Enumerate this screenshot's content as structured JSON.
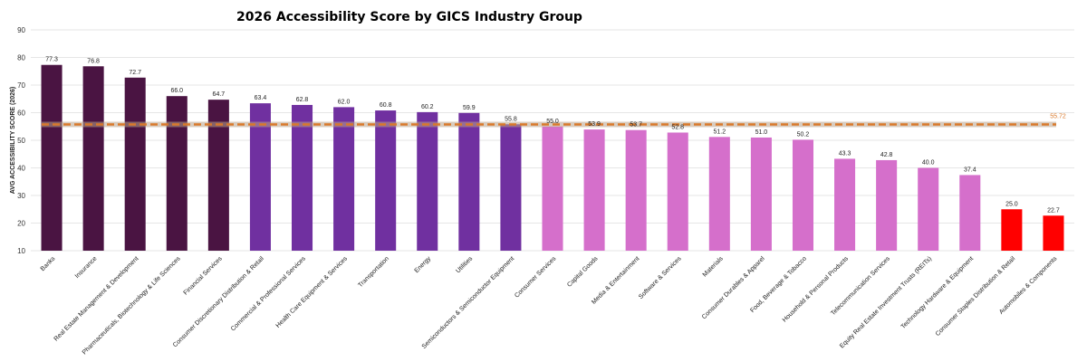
{
  "chart_data": {
    "type": "bar",
    "title": "2026 Accessibility Score by GICS Industry Group",
    "xlabel": "",
    "ylabel": "AVG ACCESSIBILITY SCORE (2026)",
    "ylim": [
      10,
      90
    ],
    "yticks": [
      10,
      20,
      30,
      40,
      50,
      60,
      70,
      80,
      90
    ],
    "grid": true,
    "categories": [
      "Banks",
      "Insurance",
      "Real Estate Management & Development",
      "Pharmaceuticals, Biotechnology & Life Sciences",
      "Financial Services",
      "Consumer Discretionary Distribution & Retail",
      "Commercial & Professional Services",
      "Health Care Equipment & Services",
      "Transportation",
      "Energy",
      "Utilities",
      "Semiconductors & Semiconductor Equipment",
      "Consumer Services",
      "Capital Goods",
      "Media & Entertainment",
      "Software & Services",
      "Materials",
      "Consumer Durables & Apparel",
      "Food, Beverage & Tobacco",
      "Household & Personal Products",
      "Telecommunication Services",
      "Equity Real Estate Investment Trusts (REITs)",
      "Technology Hardware & Equipment",
      "Consumer Staples Distribution & Retail",
      "Automobiles & Components"
    ],
    "values": [
      77.3,
      76.8,
      72.7,
      66.0,
      64.7,
      63.4,
      62.8,
      62.0,
      60.8,
      60.2,
      59.9,
      55.8,
      55.0,
      53.9,
      53.7,
      52.8,
      51.2,
      51.0,
      50.2,
      43.3,
      42.8,
      40.0,
      37.4,
      25.0,
      22.7
    ],
    "value_labels": [
      "77.3",
      "76.8",
      "72.7",
      "66.0",
      "64.7",
      "63.4",
      "62.8",
      "62.0",
      "60.8",
      "60.2",
      "59.9",
      "55.8",
      "55.0",
      "53.9",
      "53.7",
      "52.8",
      "51.2",
      "51.0",
      "50.2",
      "43.3",
      "42.8",
      "40.0",
      "37.4",
      "25.0",
      "22.7"
    ],
    "bar_colors": [
      "#4a1442",
      "#4a1442",
      "#4a1442",
      "#4a1442",
      "#4a1442",
      "#7030a0",
      "#7030a0",
      "#7030a0",
      "#7030a0",
      "#7030a0",
      "#7030a0",
      "#7030a0",
      "#d56fcb",
      "#d56fcb",
      "#d56fcb",
      "#d56fcb",
      "#d56fcb",
      "#d56fcb",
      "#d56fcb",
      "#d56fcb",
      "#d56fcb",
      "#d56fcb",
      "#d56fcb",
      "#ff0000",
      "#ff0000"
    ],
    "reference_line": {
      "value": 55.72,
      "label": "55.72",
      "color": "#d9792b",
      "style": "dashed"
    }
  }
}
